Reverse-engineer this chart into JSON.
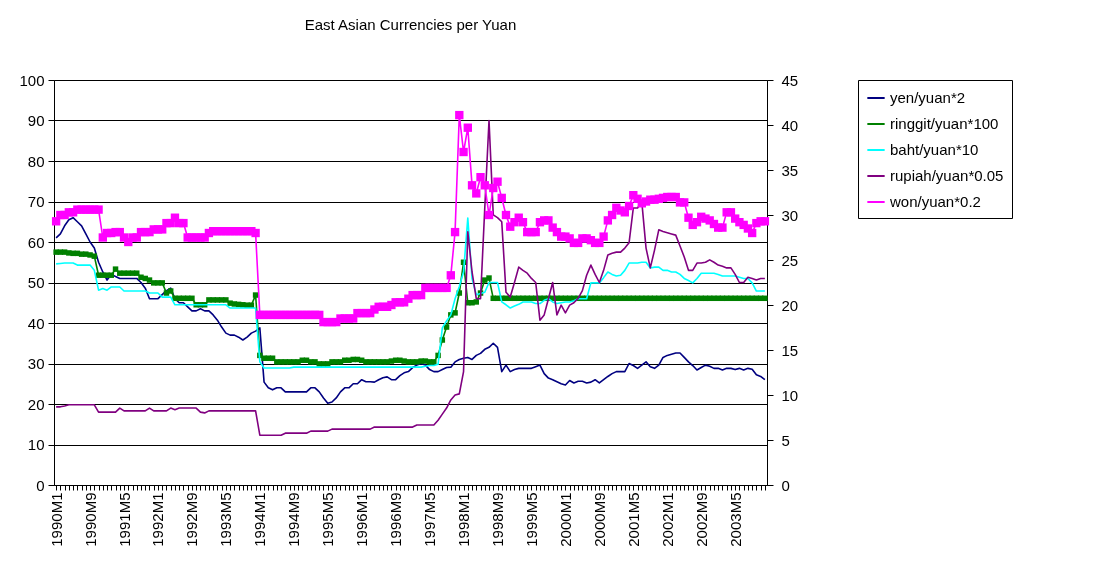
{
  "chart_data": {
    "type": "line",
    "title": "East Asian Currencies per Yuan",
    "categories": [
      "1990M1",
      null,
      null,
      null,
      null,
      null,
      null,
      null,
      "1990M9",
      null,
      null,
      null,
      null,
      null,
      null,
      null,
      "1991M5",
      null,
      null,
      null,
      null,
      null,
      null,
      null,
      "1992M1",
      null,
      null,
      null,
      null,
      null,
      null,
      null,
      "1992M9",
      null,
      null,
      null,
      null,
      null,
      null,
      null,
      "1993M5",
      null,
      null,
      null,
      null,
      null,
      null,
      null,
      "1994M1",
      null,
      null,
      null,
      null,
      null,
      null,
      null,
      "1994M9",
      null,
      null,
      null,
      null,
      null,
      null,
      null,
      "1995M5",
      null,
      null,
      null,
      null,
      null,
      null,
      null,
      "1996M1",
      null,
      null,
      null,
      null,
      null,
      null,
      null,
      "1996M9",
      null,
      null,
      null,
      null,
      null,
      null,
      null,
      "1997M5",
      null,
      null,
      null,
      null,
      null,
      null,
      null,
      "1998M1",
      null,
      null,
      null,
      null,
      null,
      null,
      null,
      "1998M9",
      null,
      null,
      null,
      null,
      null,
      null,
      null,
      "1999M5",
      null,
      null,
      null,
      null,
      null,
      null,
      null,
      "2000M1",
      null,
      null,
      null,
      null,
      null,
      null,
      null,
      "2000M9",
      null,
      null,
      null,
      null,
      null,
      null,
      null,
      "2001M5",
      null,
      null,
      null,
      null,
      null,
      null,
      null,
      "2002M1",
      null,
      null,
      null,
      null,
      null,
      null,
      null,
      "2002M9",
      null,
      null,
      null,
      null,
      null,
      null,
      null,
      "2003M5",
      null,
      null,
      null,
      null,
      null,
      null,
      null
    ],
    "ylim": [
      0,
      100
    ],
    "yticks": [
      0,
      10,
      20,
      30,
      40,
      50,
      60,
      70,
      80,
      90,
      100
    ],
    "y2lim": [
      0,
      45
    ],
    "y2ticks": [
      0,
      5,
      10,
      15,
      20,
      25,
      30,
      35,
      40,
      45
    ],
    "grid": "y",
    "legend": "right",
    "series": [
      {
        "name": "yen/yuan*2",
        "color": "#000080",
        "marker": "none",
        "values": [
          61,
          62,
          64,
          65.5,
          66,
          65,
          64,
          62,
          60,
          58.5,
          55,
          52.6,
          50.6,
          52,
          51.5,
          51,
          51,
          51,
          51,
          51,
          50,
          48.6,
          46,
          46,
          46,
          47,
          48,
          48.6,
          46,
          45,
          45,
          44,
          43,
          43,
          43.5,
          43,
          43,
          42,
          40.7,
          39,
          37.5,
          37,
          37,
          36.5,
          35.8,
          36.5,
          37.5,
          38,
          38.8,
          25.4,
          24,
          23.5,
          24,
          24,
          23,
          23,
          23,
          23,
          23,
          23,
          24,
          24,
          23,
          21.5,
          20.2,
          20.5,
          21.5,
          23,
          24,
          24,
          25,
          25,
          26,
          25.5,
          25.5,
          25.4,
          26,
          26.5,
          26.7,
          26,
          26,
          27,
          27.7,
          28,
          29,
          29.6,
          30,
          29.6,
          28.5,
          28,
          28,
          28.5,
          29,
          29.1,
          30.4,
          31,
          31.3,
          31.5,
          31,
          32,
          32.5,
          33.5,
          34,
          35,
          34,
          28,
          29.6,
          28,
          28.5,
          28.8,
          28.8,
          28.8,
          28.8,
          29.2,
          29.6,
          27.5,
          26.4,
          26,
          25.5,
          25,
          24.7,
          25.8,
          25.2,
          25.6,
          25.6,
          25.2,
          25.4,
          26,
          25.2,
          26,
          26.8,
          27.5,
          28,
          28,
          28,
          30,
          29.5,
          28.8,
          29.6,
          30.4,
          29.2,
          28.8,
          29.6,
          31.5,
          32,
          32.3,
          32.6,
          32.6,
          31.5,
          30.4,
          29.5,
          28.4,
          29,
          29.6,
          29.3,
          28.8,
          28.8,
          28.4,
          28.8,
          28.8,
          28.5,
          28.8,
          28.4,
          28.8,
          28.6,
          27.2,
          26.8,
          26
        ]
      },
      {
        "name": "ringgit/yuan*100",
        "color": "#008000",
        "marker": "square",
        "values": [
          57.5,
          57.5,
          57.5,
          57.3,
          57.2,
          57.2,
          57,
          57,
          56.8,
          56.5,
          51.8,
          51.8,
          51.8,
          51.8,
          53.3,
          52.3,
          52.3,
          52.3,
          52.3,
          52.3,
          51.3,
          51,
          50.6,
          49.9,
          49.9,
          49.9,
          47.4,
          47.9,
          46.1,
          46.1,
          46.1,
          46.1,
          46.1,
          44.5,
          44.5,
          44.5,
          45.7,
          45.7,
          45.7,
          45.7,
          45.7,
          44.9,
          44.7,
          44.6,
          44.5,
          44.4,
          44.4,
          46.9,
          32,
          31.3,
          31.3,
          31.3,
          30.4,
          30.4,
          30.4,
          30.4,
          30.4,
          30.4,
          30.8,
          30.8,
          30.4,
          30.4,
          29.9,
          29.9,
          29.9,
          30.4,
          30.4,
          30.4,
          30.8,
          30.8,
          31,
          31,
          30.8,
          30.4,
          30.4,
          30.4,
          30.4,
          30.4,
          30.4,
          30.6,
          30.8,
          30.8,
          30.6,
          30.4,
          30.4,
          30.4,
          30.6,
          30.6,
          30.4,
          30.4,
          32,
          35.8,
          39,
          42,
          42.5,
          47.4,
          55,
          45,
          45,
          45.2,
          47.4,
          50.6,
          51.1,
          46.1,
          46.1,
          46.1,
          46.1,
          46.1,
          46.1,
          46.1,
          46.1,
          46.1,
          46.1,
          46.1,
          46.1,
          46.1,
          46.1,
          46.1,
          46.1,
          46.1,
          46.1,
          46.1,
          46.1,
          46.1,
          46.1,
          46.1,
          46.1,
          46.1,
          46.1,
          46.1,
          46.1,
          46.1,
          46.1,
          46.1,
          46.1,
          46.1,
          46.1,
          46.1,
          46.1,
          46.1,
          46.1,
          46.1,
          46.1,
          46.1,
          46.1,
          46.1,
          46.1,
          46.1,
          46.1,
          46.1,
          46.1,
          46.1,
          46.1,
          46.1,
          46.1,
          46.1,
          46.1,
          46.1,
          46.1,
          46.1,
          46.1,
          46.1,
          46.1,
          46.1,
          46.1,
          46.1,
          46.1,
          46.1
        ]
      },
      {
        "name": "baht/yuan*10",
        "color": "#00ffff",
        "marker": "none",
        "values": [
          54.6,
          54.7,
          54.8,
          54.8,
          54.8,
          54.3,
          54.3,
          54.3,
          54.3,
          53,
          48.1,
          48.5,
          48.1,
          48.9,
          48.9,
          48.9,
          47.9,
          47.9,
          47.9,
          47.9,
          47.9,
          47.9,
          47.4,
          47.4,
          47.4,
          46.4,
          46.4,
          46.4,
          44.5,
          44.5,
          44.5,
          44.5,
          44.5,
          44.5,
          44.5,
          44.5,
          44.5,
          44.5,
          44.5,
          44.5,
          44.5,
          43.7,
          43.7,
          43.7,
          43.7,
          43.7,
          43.7,
          43.7,
          30.4,
          28.9,
          28.9,
          28.9,
          28.9,
          28.9,
          28.9,
          28.9,
          29.1,
          29.1,
          29.1,
          29.1,
          29.1,
          29.1,
          29.1,
          29.1,
          29.1,
          29.1,
          29.1,
          29.1,
          29.1,
          29.1,
          29.1,
          29.1,
          29.1,
          29.1,
          29.1,
          29.1,
          29.1,
          29.1,
          29.1,
          29.1,
          29.1,
          29.1,
          29.1,
          29.1,
          29.1,
          29.1,
          29.1,
          29.3,
          29.5,
          29.5,
          29.8,
          38.8,
          40.5,
          42,
          46,
          49,
          52.6,
          65.9,
          51,
          47,
          47.3,
          47.6,
          50,
          50,
          50,
          45.2,
          44.5,
          43.7,
          44.2,
          44.6,
          45.2,
          45.2,
          45.2,
          44.8,
          44.8,
          45.6,
          46,
          45.2,
          44.8,
          45,
          45.2,
          45.2,
          45.5,
          46,
          46,
          46,
          49.9,
          49.9,
          49.9,
          51.2,
          52.6,
          52,
          51.6,
          51.8,
          53,
          54.8,
          54.8,
          54.8,
          55,
          55,
          53.6,
          53.8,
          53.8,
          53,
          53,
          52.6,
          52.6,
          52,
          51,
          50.5,
          49.9,
          51,
          52.3,
          52.3,
          52.3,
          52.3,
          52,
          51.6,
          51.6,
          51.6,
          51.6,
          51.3,
          51,
          51,
          49.9,
          47.9,
          47.9,
          47.9
        ]
      },
      {
        "name": "rupiah/yuan*0.05",
        "color": "#800080",
        "marker": "none",
        "values": [
          19.3,
          19.3,
          19.5,
          19.8,
          19.8,
          19.8,
          19.8,
          19.8,
          19.8,
          19.8,
          18,
          18,
          18,
          18,
          18,
          19,
          18.3,
          18.3,
          18.3,
          18.3,
          18.3,
          18.3,
          19,
          18.3,
          18.3,
          18.3,
          18.3,
          19,
          18.6,
          19,
          19,
          19,
          19,
          19,
          18,
          17.8,
          18.3,
          18.3,
          18.3,
          18.3,
          18.3,
          18.3,
          18.3,
          18.3,
          18.3,
          18.3,
          18.3,
          18.3,
          12.3,
          12.3,
          12.3,
          12.3,
          12.3,
          12.3,
          12.8,
          12.8,
          12.8,
          12.8,
          12.8,
          12.8,
          13.3,
          13.3,
          13.3,
          13.3,
          13.3,
          13.8,
          13.8,
          13.8,
          13.8,
          13.8,
          13.8,
          13.8,
          13.8,
          13.8,
          13.8,
          14.3,
          14.3,
          14.3,
          14.3,
          14.3,
          14.3,
          14.3,
          14.3,
          14.3,
          14.3,
          14.8,
          14.8,
          14.8,
          14.8,
          14.8,
          16,
          17.5,
          19,
          21,
          22.2,
          22.5,
          28,
          62.5,
          52.6,
          46,
          46,
          68.4,
          90,
          66.7,
          66,
          65,
          47.6,
          46.4,
          50,
          53.8,
          53,
          52.3,
          51,
          50,
          40.7,
          42,
          46,
          50,
          42,
          44.4,
          42.5,
          44.4,
          45,
          46.1,
          48,
          51.8,
          54.3,
          52,
          50,
          53,
          56.8,
          57.2,
          57.5,
          57.5,
          58.5,
          59.8,
          68.4,
          68.4,
          69.9,
          58.5,
          53.6,
          58,
          63,
          62.6,
          62.3,
          62,
          61.7,
          59,
          56.3,
          53,
          53,
          54.8,
          54.8,
          55,
          55.6,
          55,
          54.3,
          54,
          53.6,
          53.6,
          52,
          50,
          50,
          51.3,
          51,
          50.6,
          51,
          51
        ]
      },
      {
        "name": "won/yuan*0.2",
        "color": "#ff00ff",
        "marker": "square",
        "axis": "y2",
        "values": [
          29.3,
          30,
          30,
          30.3,
          30.3,
          30.6,
          30.6,
          30.6,
          30.6,
          30.6,
          30.6,
          27.5,
          28,
          28,
          28.1,
          28.1,
          27.5,
          27,
          27.5,
          27.5,
          28.1,
          28.1,
          28.1,
          28.4,
          28.4,
          28.4,
          29.1,
          29.1,
          29.7,
          29.1,
          29.1,
          27.5,
          27.5,
          27.5,
          27.5,
          27.5,
          28,
          28.2,
          28.2,
          28.2,
          28.2,
          28.2,
          28.2,
          28.2,
          28.2,
          28.2,
          28.2,
          28,
          18.9,
          18.9,
          18.9,
          18.9,
          18.9,
          18.9,
          18.9,
          18.9,
          18.9,
          18.9,
          18.9,
          18.9,
          18.9,
          18.9,
          18.9,
          18.1,
          18.1,
          18.1,
          18.1,
          18.5,
          18.5,
          18.5,
          18.5,
          19.1,
          19.1,
          19.1,
          19.1,
          19.5,
          19.8,
          19.8,
          19.8,
          20,
          20.3,
          20.3,
          20.3,
          20.7,
          21.1,
          21.1,
          21.1,
          21.9,
          21.9,
          21.9,
          21.9,
          21.9,
          21.9,
          23.3,
          28.1,
          41.1,
          37,
          39.7,
          33.3,
          32.4,
          34.2,
          33.3,
          30,
          33,
          33.7,
          31.9,
          30,
          28.7,
          29.2,
          29.7,
          29.2,
          28.1,
          28.1,
          28.1,
          29.2,
          29.4,
          29.4,
          28.6,
          28.1,
          27.6,
          27.6,
          27.4,
          26.9,
          26.9,
          27.4,
          27.4,
          27.2,
          26.9,
          26.9,
          27.6,
          29.4,
          30,
          30.8,
          30.5,
          30.3,
          31,
          32.2,
          31.8,
          31.3,
          31.5,
          31.7,
          31.7,
          31.8,
          31.9,
          32,
          32,
          32,
          31.4,
          31.4,
          29.7,
          28.9,
          29.2,
          29.8,
          29.6,
          29.4,
          29,
          28.6,
          28.6,
          30.3,
          30.3,
          29.6,
          29.2,
          28.9,
          28.5,
          28,
          29.1,
          29.3,
          29.3
        ]
      }
    ]
  }
}
